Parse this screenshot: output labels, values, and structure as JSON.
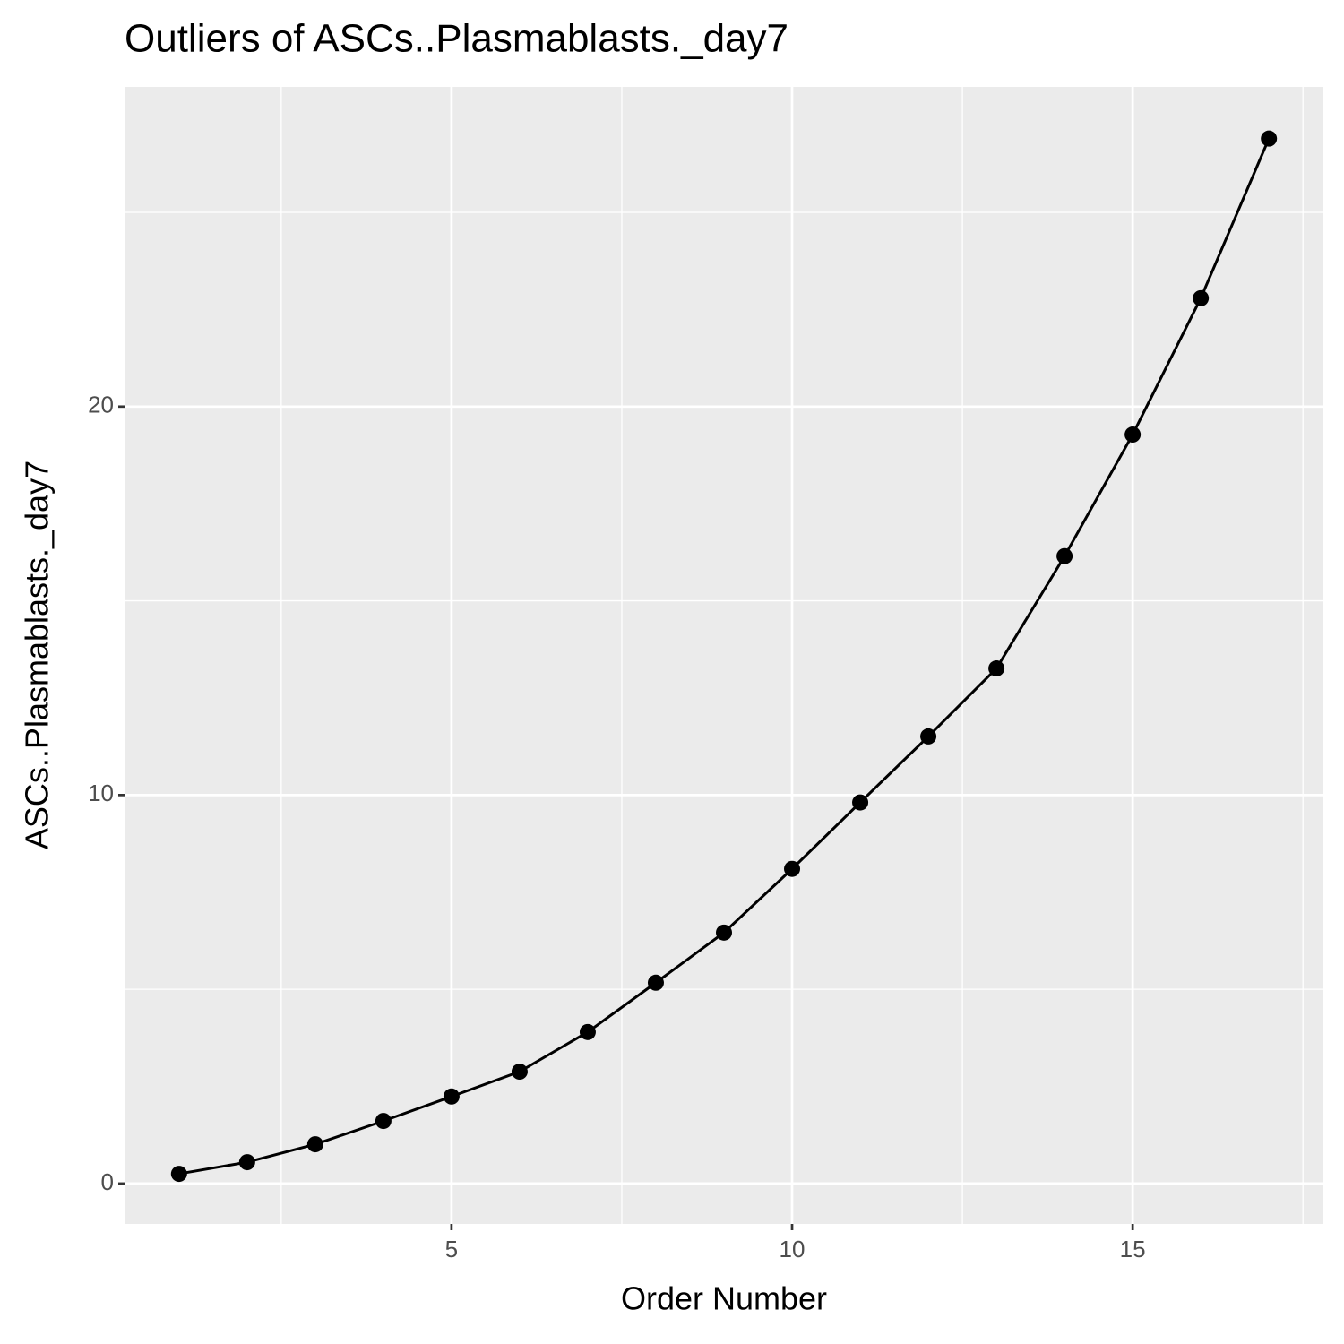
{
  "chart_data": {
    "type": "line",
    "title": "Outliers of ASCs..Plasmablasts._day7",
    "x_label": "Order Number",
    "y_label": "ASCs..Plasmablasts._day7",
    "x": [
      1,
      2,
      3,
      4,
      5,
      6,
      7,
      8,
      9,
      10,
      11,
      12,
      13,
      14,
      15,
      16,
      17
    ],
    "series": [
      {
        "name": "ASCs..Plasmablasts._day7",
        "color": "#000000",
        "values": [
          0.25,
          0.55,
          1.01,
          1.61,
          2.24,
          2.88,
          3.9,
          5.17,
          6.46,
          8.1,
          9.81,
          11.51,
          13.26,
          16.15,
          19.28,
          22.79,
          26.9
        ]
      }
    ],
    "xlim": [
      0.2,
      17.8
    ],
    "ylim": [
      -1.04,
      28.23
    ],
    "xticks": [
      5,
      10,
      15
    ],
    "yticks": [
      0,
      10,
      20
    ],
    "xminor": [
      2.5,
      7.5,
      12.5,
      17.5
    ],
    "yminor": [
      5,
      15,
      25
    ],
    "grid": true
  }
}
